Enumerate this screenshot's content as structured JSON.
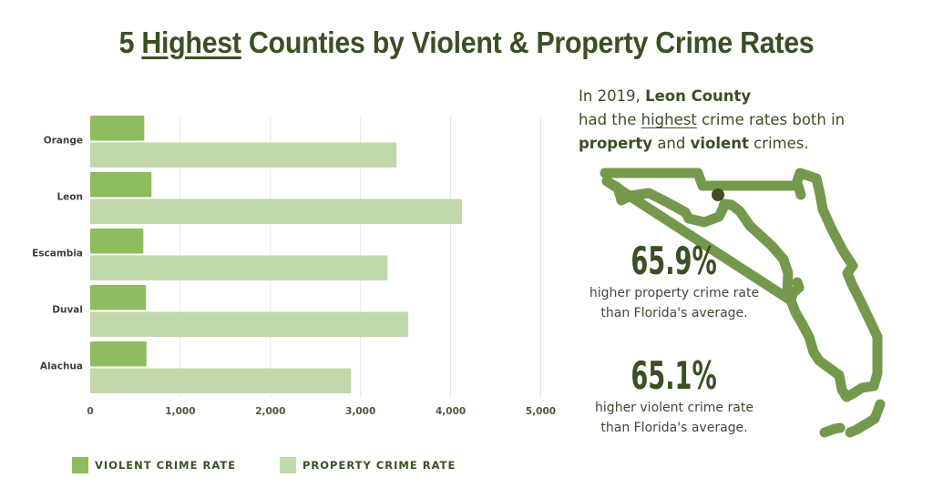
{
  "title": {
    "prefix": "5 ",
    "underlined": "Highest",
    "suffix": " Counties by Violent & Property Crime Rates"
  },
  "colors": {
    "title": "#3b4f24",
    "violent": "#8fbc5e",
    "property": "#c1d8ab",
    "grid": "#e6e6e6",
    "map_outline": "#74994c",
    "map_marker": "#3b4f24"
  },
  "chart_data": {
    "type": "bar",
    "orientation": "horizontal",
    "title": "5 Highest Counties by Violent & Property Crime Rates",
    "xlabel": "",
    "ylabel": "",
    "categories": [
      "Orange",
      "Leon",
      "Escambia",
      "Duval",
      "Alachua"
    ],
    "series": [
      {
        "name": "VIOLENT CRIME RATE",
        "values": [
          600,
          680,
          590,
          620,
          625
        ]
      },
      {
        "name": "PROPERTY CRIME RATE",
        "values": [
          3400,
          4125,
          3300,
          3530,
          2895
        ]
      }
    ],
    "xlim": [
      0,
      5000
    ],
    "xticks": [
      0,
      1000,
      2000,
      3000,
      4000,
      5000
    ],
    "xtick_labels": [
      "0",
      "1,000",
      "2,000",
      "3,000",
      "4,000",
      "5,000"
    ],
    "grid": true,
    "legend_position": "bottom-left"
  },
  "legend": [
    {
      "label": "VIOLENT CRIME RATE"
    },
    {
      "label": "PROPERTY CRIME RATE"
    }
  ],
  "intro": {
    "line1_prefix": "In 2019, ",
    "line1_bold": "Leon County",
    "line2_prefix": "had the ",
    "line2_underlined": "highest",
    "line2_suffix": " crime rates both in",
    "line3_bold1": "property",
    "line3_mid": " and ",
    "line3_bold2": "violent",
    "line3_suffix": " crimes."
  },
  "stats": [
    {
      "value": "65.9%",
      "line1": "higher property crime rate",
      "line2": "than Florida's average."
    },
    {
      "value": "65.1%",
      "line1": "higher violent crime rate",
      "line2": "than Florida's average."
    }
  ],
  "map": {
    "icon": "florida-map-icon",
    "marker": "leon-county-marker"
  }
}
